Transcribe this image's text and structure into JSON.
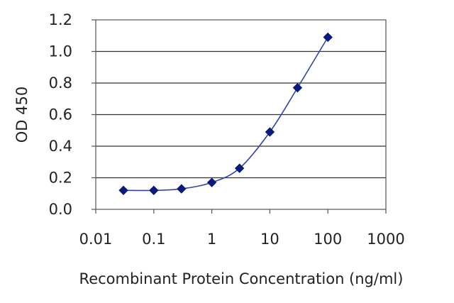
{
  "chart_data": {
    "type": "line",
    "xlabel": "Recombinant Protein Concentration (ng/ml)",
    "ylabel": "OD 450",
    "xscale": "log",
    "xlim": [
      0.01,
      1000
    ],
    "ylim": [
      0,
      1.2
    ],
    "xticks": [
      "0.01",
      "0.1",
      "1",
      "10",
      "100",
      "1000"
    ],
    "yticks": [
      "0.0",
      "0.2",
      "0.4",
      "0.6",
      "0.8",
      "1.0",
      "1.2"
    ],
    "grid": "horizontal",
    "series": [
      {
        "x": [
          0.03,
          0.1,
          0.3,
          1,
          3,
          10,
          30,
          100
        ],
        "y": [
          0.12,
          0.12,
          0.13,
          0.17,
          0.26,
          0.49,
          0.77,
          1.09
        ]
      }
    ],
    "colors": {
      "series": "#3344aa",
      "marker": "#0a1a7a",
      "grid": "#333333",
      "axis": "#555555"
    }
  }
}
